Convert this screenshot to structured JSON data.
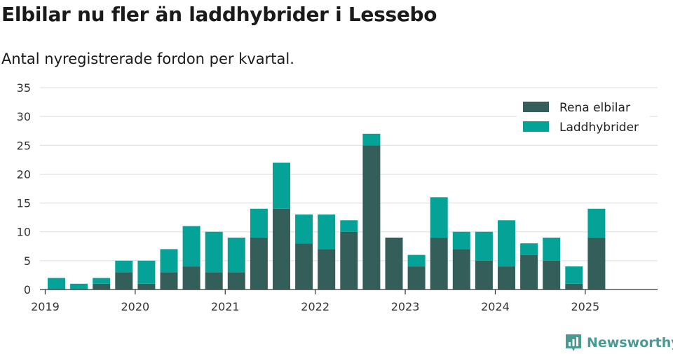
{
  "title": "Elbilar nu fler än laddhybrider i Lessebo",
  "subtitle": "Antal nyregistrerade fordon per kvartal.",
  "brand": {
    "name": "Newsworthy",
    "icon": "newsworthy-logo-icon"
  },
  "chart_data": {
    "type": "bar",
    "stacked": true,
    "x": [
      "2019-Q1",
      "2019-Q2",
      "2019-Q3",
      "2019-Q4",
      "2020-Q1",
      "2020-Q2",
      "2020-Q3",
      "2020-Q4",
      "2021-Q1",
      "2021-Q2",
      "2021-Q3",
      "2021-Q4",
      "2022-Q1",
      "2022-Q2",
      "2022-Q3",
      "2022-Q4",
      "2023-Q1",
      "2023-Q2",
      "2023-Q3",
      "2023-Q4",
      "2024-Q1",
      "2024-Q2",
      "2024-Q3",
      "2024-Q4",
      "2025-Q1",
      "2025-Q2"
    ],
    "x_ticks": [
      "2019",
      "2020",
      "2021",
      "2022",
      "2023",
      "2024",
      "2025"
    ],
    "series": [
      {
        "name": "Rena elbilar",
        "color": "#335e5a",
        "values": [
          0,
          0,
          1,
          3,
          1,
          3,
          4,
          3,
          3,
          9,
          14,
          8,
          7,
          10,
          25,
          9,
          4,
          9,
          7,
          5,
          4,
          6,
          5,
          1,
          9,
          0
        ]
      },
      {
        "name": "Laddhybrider",
        "color": "#04a297",
        "values": [
          2,
          1,
          1,
          2,
          4,
          4,
          7,
          7,
          6,
          5,
          8,
          5,
          6,
          2,
          2,
          0,
          2,
          7,
          3,
          5,
          8,
          2,
          4,
          3,
          5,
          0
        ]
      }
    ],
    "ylim": [
      0,
      35
    ],
    "y_ticks": [
      0,
      5,
      10,
      15,
      20,
      25,
      30,
      35
    ],
    "grid": true,
    "legend": "top-right",
    "xlabel": "",
    "ylabel": ""
  }
}
